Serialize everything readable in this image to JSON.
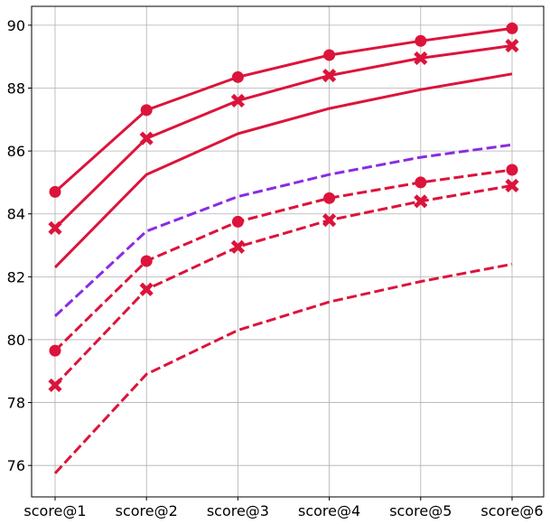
{
  "chart_data": {
    "type": "line",
    "title": "",
    "xlabel": "",
    "ylabel": "",
    "categories": [
      "score@1",
      "score@2",
      "score@3",
      "score@4",
      "score@5",
      "score@6"
    ],
    "ylim": [
      75.0,
      90.6
    ],
    "yticks": [
      76,
      78,
      80,
      82,
      84,
      86,
      88,
      90
    ],
    "grid": true,
    "legend": "none",
    "series": [
      {
        "values": [
          84.7,
          87.3,
          88.35,
          89.05,
          89.5,
          89.9
        ],
        "color": "#dc143c",
        "style": "solid",
        "marker": "circle"
      },
      {
        "values": [
          83.55,
          86.4,
          87.6,
          88.4,
          88.95,
          89.35
        ],
        "color": "#dc143c",
        "style": "solid",
        "marker": "x"
      },
      {
        "values": [
          82.3,
          85.25,
          86.55,
          87.35,
          87.95,
          88.45
        ],
        "color": "#dc143c",
        "style": "solid",
        "marker": "none"
      },
      {
        "values": [
          80.75,
          83.45,
          84.55,
          85.25,
          85.8,
          86.2
        ],
        "color": "#8a2be2",
        "style": "dashed",
        "marker": "none"
      },
      {
        "values": [
          79.65,
          82.5,
          83.75,
          84.5,
          85.0,
          85.4
        ],
        "color": "#dc143c",
        "style": "dashed",
        "marker": "circle"
      },
      {
        "values": [
          78.55,
          81.6,
          82.95,
          83.8,
          84.4,
          84.9
        ],
        "color": "#dc143c",
        "style": "dashed",
        "marker": "x"
      },
      {
        "values": [
          75.75,
          78.9,
          80.3,
          81.2,
          81.85,
          82.4
        ],
        "color": "#dc143c",
        "style": "dashed",
        "marker": "none"
      }
    ]
  }
}
